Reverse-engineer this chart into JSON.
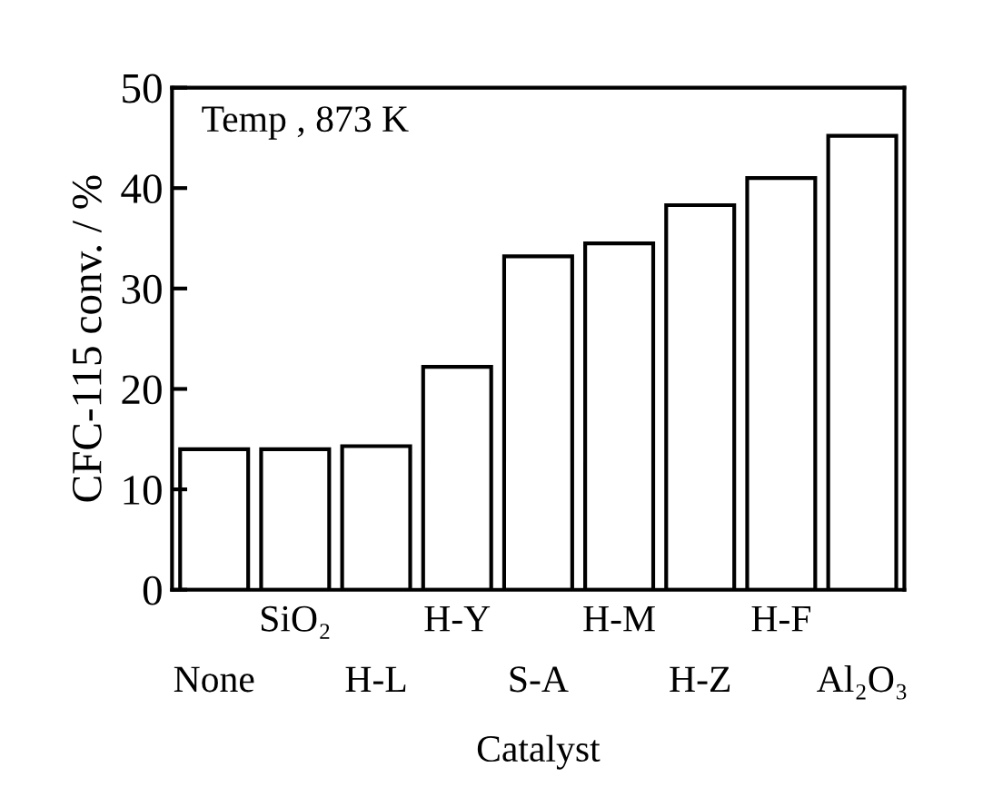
{
  "chart_data": {
    "type": "bar",
    "xlabel": "Catalyst",
    "ylabel": "CFC-115 conv. / %",
    "annotations": [
      "Temp , 873 K"
    ],
    "categories": [
      "None",
      "SiO₂",
      "H-L",
      "H-Y",
      "S-A",
      "H-M",
      "H-Z",
      "H-F",
      "Al₂O₃"
    ],
    "values": [
      14,
      14,
      14.3,
      22.2,
      33.2,
      34.5,
      38.3,
      41,
      45.2
    ],
    "color": "#ffffff",
    "ylim": [
      0,
      50
    ],
    "yticks": [
      0,
      10,
      20,
      30,
      40,
      50
    ],
    "grid": false
  }
}
